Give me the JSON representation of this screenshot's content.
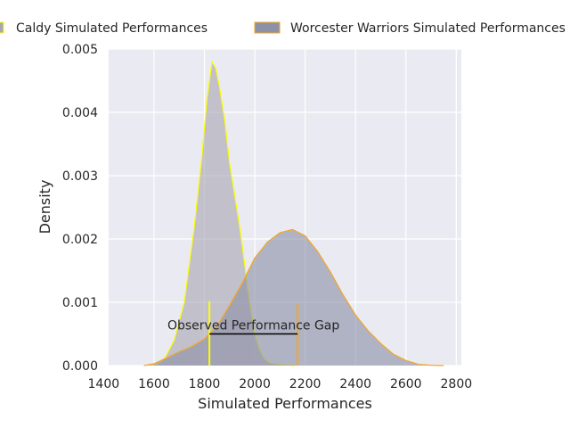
{
  "chart_data": {
    "type": "area",
    "xlabel": "Simulated Performances",
    "ylabel": "Density",
    "xlim": [
      1420,
      2820
    ],
    "ylim": [
      0,
      0.005
    ],
    "x_ticks": [
      1400,
      1600,
      1800,
      2000,
      2200,
      2400,
      2600,
      2800
    ],
    "y_ticks": [
      0,
      0.001,
      0.002,
      0.003,
      0.004,
      0.005
    ],
    "x_tick_labels": [
      "1400",
      "1600",
      "1800",
      "2000",
      "2200",
      "2400",
      "2600",
      "2800"
    ],
    "y_tick_labels": [
      "0.000",
      "0.001",
      "0.002",
      "0.003",
      "0.004",
      "0.005"
    ],
    "grid": true,
    "legend_position": "top",
    "series": [
      {
        "name": "Caldy Simulated Performances",
        "fill": "#a9a7b3",
        "edge": "#ffff00",
        "x": [
          1600,
          1640,
          1680,
          1720,
          1760,
          1790,
          1810,
          1830,
          1845,
          1860,
          1880,
          1900,
          1920,
          1940,
          1960,
          1980,
          2000,
          2020,
          2040,
          2060,
          2080,
          2100,
          2130,
          2160
        ],
        "y": [
          0.0,
          0.0001,
          0.0004,
          0.001,
          0.0022,
          0.0033,
          0.0042,
          0.0048,
          0.0047,
          0.0044,
          0.0039,
          0.0032,
          0.0027,
          0.0022,
          0.0016,
          0.001,
          0.0005,
          0.00025,
          0.0001,
          5e-05,
          3e-05,
          2e-05,
          1e-05,
          0.0
        ]
      },
      {
        "name": "Worcester Warriors Simulated Performances",
        "fill": "#8c91a8",
        "edge": "#f5a623",
        "x": [
          1560,
          1600,
          1650,
          1700,
          1750,
          1800,
          1850,
          1900,
          1950,
          2000,
          2050,
          2100,
          2150,
          2200,
          2250,
          2300,
          2350,
          2400,
          2450,
          2500,
          2550,
          2600,
          2650,
          2700,
          2750
        ],
        "y": [
          0.0,
          3e-05,
          0.00012,
          0.00022,
          0.0003,
          0.00042,
          0.00062,
          0.00095,
          0.0013,
          0.0017,
          0.00195,
          0.0021,
          0.00215,
          0.00205,
          0.0018,
          0.00148,
          0.00112,
          0.0008,
          0.00055,
          0.00035,
          0.00018,
          8e-05,
          2e-05,
          5e-06,
          0.0
        ]
      }
    ],
    "markers": [
      {
        "x": 1820,
        "height": 0.00102,
        "color": "#ffff00"
      },
      {
        "x": 2170,
        "height": 0.00098,
        "color": "#f5a623"
      }
    ],
    "gap_line": {
      "x1": 1820,
      "x2": 2170,
      "y": 0.0005,
      "color": "#000000"
    },
    "annotation": {
      "text": "Observed Performance Gap",
      "x": 1995,
      "y": 0.00057
    }
  }
}
